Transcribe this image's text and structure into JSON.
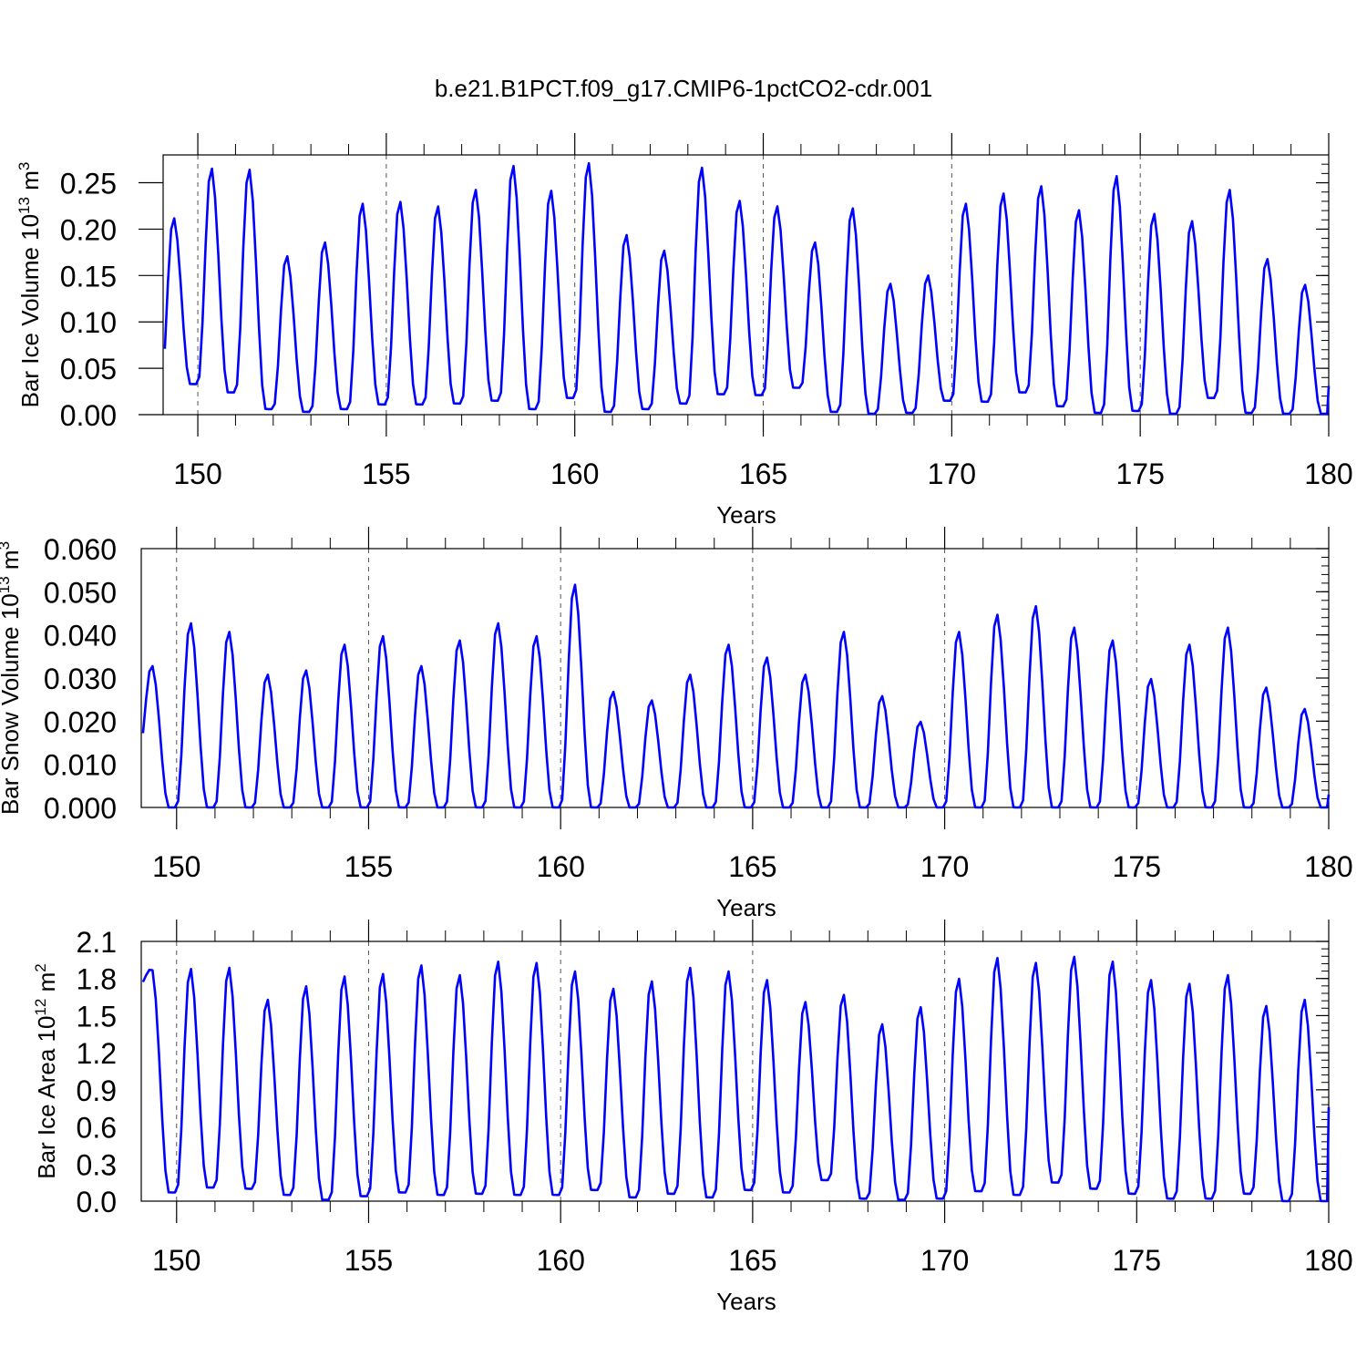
{
  "title": "b.e21.B1PCT.f09_g17.CMIP6-1pctCO2-cdr.001",
  "line_color": "#0000ff",
  "chart_data": [
    {
      "type": "line",
      "ylabel": "Bar Ice Volume",
      "ylabel_unit": "10",
      "ylabel_unit_exp": "13",
      "ylabel_unit2": " m",
      "ylabel_unit2_exp": "3",
      "xlabel": "Years",
      "xlim": [
        149.08,
        180.0
      ],
      "ylim": [
        0.0,
        0.28
      ],
      "yticks": [
        0.0,
        0.05,
        0.1,
        0.15,
        0.2,
        0.25
      ],
      "yticklabels": [
        "0.00",
        "0.05",
        "0.10",
        "0.15",
        "0.20",
        "0.25"
      ],
      "xticks": [
        150,
        155,
        160,
        165,
        170,
        175,
        180
      ],
      "xticklabels": [
        "150",
        "155",
        "160",
        "165",
        "170",
        "175",
        "180"
      ],
      "peaks": [
        0.213,
        0.267,
        0.266,
        0.172,
        0.187,
        0.229,
        0.231,
        0.226,
        0.244,
        0.27,
        0.243,
        0.273,
        0.195,
        0.178,
        0.268,
        0.232,
        0.226,
        0.187,
        0.224,
        0.142,
        0.151,
        0.229,
        0.24,
        0.248,
        0.222,
        0.259,
        0.218,
        0.21,
        0.244,
        0.169,
        0.141
      ],
      "troughs": [
        0.015,
        0.033,
        0.024,
        0.006,
        0.003,
        0.006,
        0.011,
        0.011,
        0.012,
        0.015,
        0.006,
        0.018,
        0.003,
        0.006,
        0.012,
        0.022,
        0.021,
        0.029,
        0.003,
        0.001,
        0.002,
        0.015,
        0.014,
        0.024,
        0.009,
        0.002,
        0.004,
        0.001,
        0.018,
        0.002,
        0.001
      ],
      "series": [
        {
          "name": "",
          "end_value": 0.031
        }
      ]
    },
    {
      "type": "line",
      "ylabel": "Bar Snow Volume",
      "ylabel_unit": "10",
      "ylabel_unit_exp": "13",
      "ylabel_unit2": " m",
      "ylabel_unit2_exp": "3",
      "xlabel": "Years",
      "xlim": [
        149.08,
        180.0
      ],
      "ylim": [
        0.0,
        0.06
      ],
      "yticks": [
        0.0,
        0.01,
        0.02,
        0.03,
        0.04,
        0.05,
        0.06
      ],
      "yticklabels": [
        "0.000",
        "0.010",
        "0.020",
        "0.030",
        "0.040",
        "0.050",
        "0.060"
      ],
      "xticks": [
        150,
        155,
        160,
        165,
        170,
        175,
        180
      ],
      "xticklabels": [
        "150",
        "155",
        "160",
        "165",
        "170",
        "175",
        "180"
      ],
      "peaks": [
        0.033,
        0.043,
        0.041,
        0.031,
        0.032,
        0.038,
        0.04,
        0.033,
        0.039,
        0.043,
        0.04,
        0.052,
        0.027,
        0.025,
        0.031,
        0.038,
        0.035,
        0.031,
        0.041,
        0.026,
        0.02,
        0.041,
        0.045,
        0.047,
        0.042,
        0.039,
        0.03,
        0.038,
        0.042,
        0.028,
        0.023
      ],
      "troughs": [
        0.011,
        0.0,
        0.0,
        0.0,
        0.0,
        0.0,
        0.0,
        0.0,
        0.0,
        0.0,
        0.0,
        0.0,
        0.0,
        0.0,
        0.0,
        0.0,
        0.0,
        0.0,
        0.0,
        0.0,
        0.0,
        0.0,
        0.0,
        0.0,
        0.0,
        0.0,
        0.0,
        0.0,
        0.0,
        0.0,
        0.0
      ],
      "series": [
        {
          "name": "",
          "end_value": 0.003
        }
      ]
    },
    {
      "type": "line",
      "ylabel": "Bar Ice Area",
      "ylabel_unit": "10",
      "ylabel_unit_exp": "12",
      "ylabel_unit2": " m",
      "ylabel_unit2_exp": "2",
      "xlabel": "Years",
      "xlim": [
        149.08,
        180.0
      ],
      "ylim": [
        0.0,
        2.1
      ],
      "yticks": [
        0.0,
        0.3,
        0.6,
        0.9,
        1.2,
        1.5,
        1.8,
        2.1
      ],
      "yticklabels": [
        "0.0",
        "0.3",
        "0.6",
        "0.9",
        "1.2",
        "1.5",
        "1.8",
        "2.1"
      ],
      "xticks": [
        150,
        155,
        160,
        165,
        170,
        175,
        180
      ],
      "xticklabels": [
        "150",
        "155",
        "160",
        "165",
        "170",
        "175",
        "180"
      ],
      "peaks": [
        1.88,
        1.89,
        1.9,
        1.64,
        1.75,
        1.83,
        1.85,
        1.92,
        1.84,
        1.95,
        1.94,
        1.87,
        1.73,
        1.79,
        1.9,
        1.87,
        1.8,
        1.62,
        1.68,
        1.44,
        1.58,
        1.81,
        1.98,
        1.94,
        1.99,
        1.95,
        1.8,
        1.77,
        1.84,
        1.59,
        1.64
      ],
      "troughs": [
        1.73,
        0.07,
        0.11,
        0.1,
        0.05,
        0.01,
        0.04,
        0.07,
        0.05,
        0.06,
        0.05,
        0.05,
        0.09,
        0.03,
        0.06,
        0.03,
        0.09,
        0.07,
        0.17,
        0.02,
        0.01,
        0.02,
        0.08,
        0.05,
        0.15,
        0.1,
        0.06,
        0.02,
        0.02,
        0.06,
        0.0
      ],
      "series": [
        {
          "name": "",
          "end_value": 0.76
        }
      ]
    }
  ]
}
